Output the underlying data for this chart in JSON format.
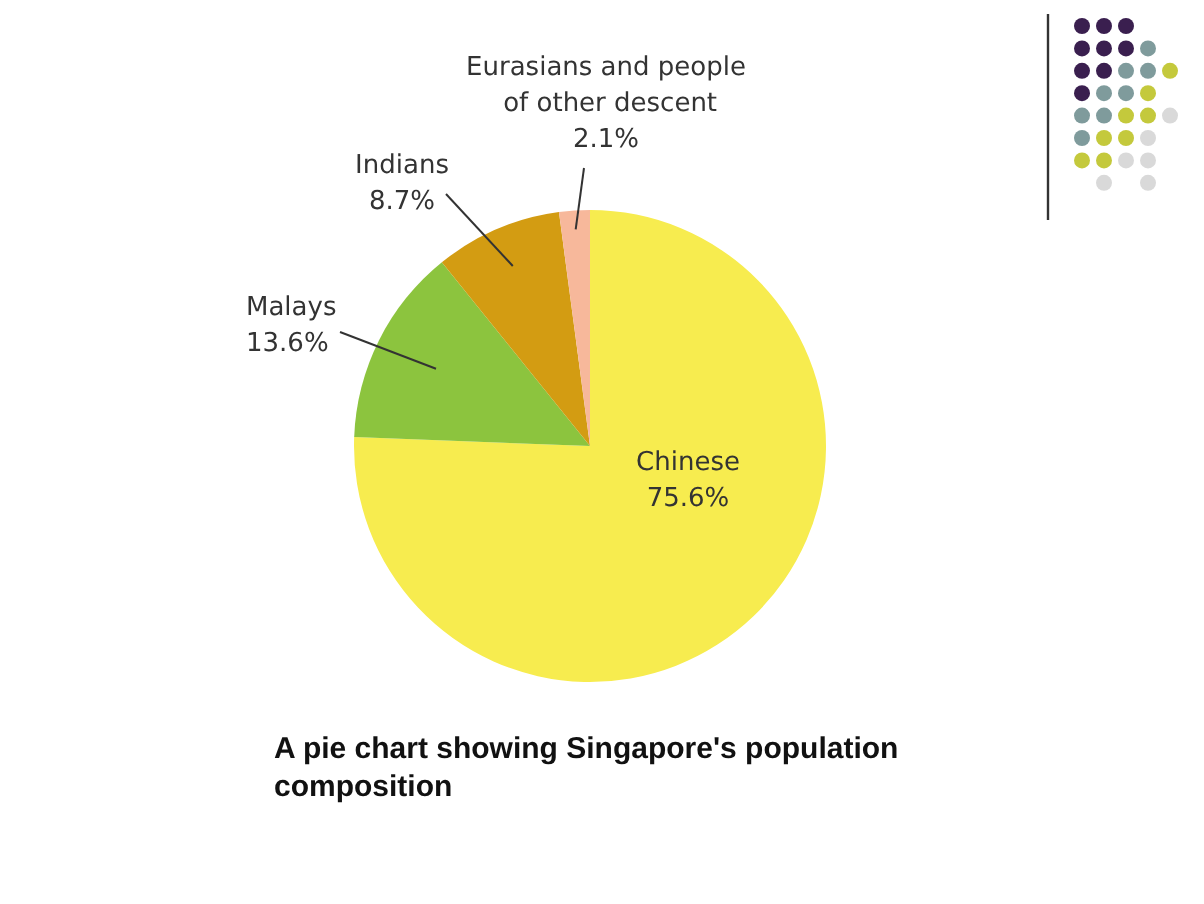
{
  "chart_data": {
    "type": "pie",
    "title": "A pie chart showing Singapore's population composition",
    "categories": [
      "Chinese",
      "Malays",
      "Indians",
      "Eurasians and people of other descent"
    ],
    "values": [
      75.6,
      13.6,
      8.7,
      2.1
    ],
    "colors": [
      "#f7ec4f",
      "#8cc43e",
      "#d39c12",
      "#f7b89b"
    ],
    "value_labels": [
      "75.6%",
      "13.6%",
      "8.7%",
      "2.1%"
    ]
  }
}
